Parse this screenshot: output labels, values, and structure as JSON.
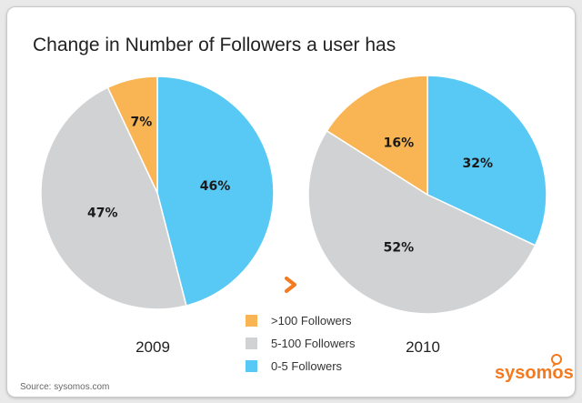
{
  "title": "Change in Number of Followers a user has",
  "source": "Source: sysomos.com",
  "brand": "sysomos",
  "legend": [
    {
      "label": ">100 Followers",
      "color": "#f9b553"
    },
    {
      "label": "5-100 Followers",
      "color": "#d1d2d4"
    },
    {
      "label": "0-5 Followers",
      "color": "#58c9f4"
    }
  ],
  "chart_data": [
    {
      "type": "pie",
      "year": "2009",
      "slices": [
        {
          "category": "0-5 Followers",
          "value": 46,
          "label": "46%",
          "color": "#58c9f4"
        },
        {
          "category": "5-100 Followers",
          "value": 47,
          "label": "47%",
          "color": "#d1d2d4"
        },
        {
          "category": ">100 Followers",
          "value": 7,
          "label": "7%",
          "color": "#f9b553"
        }
      ]
    },
    {
      "type": "pie",
      "year": "2010",
      "slices": [
        {
          "category": "0-5 Followers",
          "value": 32,
          "label": "32%",
          "color": "#58c9f4"
        },
        {
          "category": "5-100 Followers",
          "value": 52,
          "label": "52%",
          "color": "#d1d2d4"
        },
        {
          "category": ">100 Followers",
          "value": 16,
          "label": "16%",
          "color": "#f9b553"
        }
      ]
    }
  ]
}
